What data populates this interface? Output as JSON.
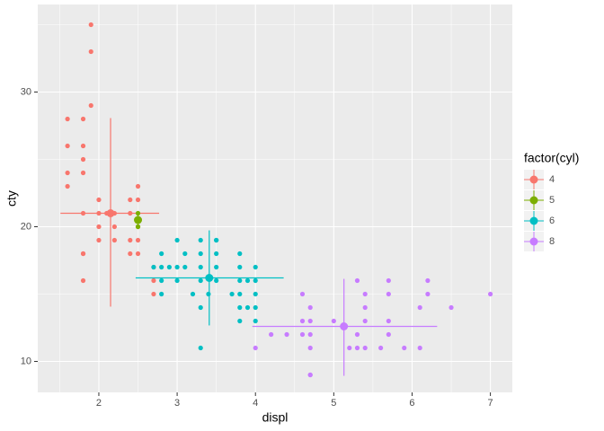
{
  "chart_data": {
    "type": "scatter",
    "xlabel": "displ",
    "ylabel": "cty",
    "legend_title": "factor(cyl)",
    "legend": "right",
    "grid": true,
    "xlim": [
      1.22,
      7.28
    ],
    "xticks": [
      2,
      3,
      4,
      5,
      6,
      7
    ],
    "x_minor_ticks": [
      1.5,
      2.5,
      3.5,
      4.5,
      5.5,
      6.5
    ],
    "ylim": [
      7.7,
      36.5
    ],
    "yticks": [
      10,
      20,
      30
    ],
    "y_minor_ticks": [
      15,
      25,
      35
    ],
    "series": [
      {
        "name": "4",
        "color": "#F8766D",
        "x": [
          1.9,
          1.9,
          1.9,
          1.6,
          1.8,
          1.8,
          1.8,
          1.8,
          1.6,
          1.6,
          1.6,
          1.8,
          1.8,
          1.8,
          2.0,
          2.0,
          2.0,
          2.0,
          2.2,
          2.2,
          2.2,
          2.4,
          2.4,
          2.4,
          2.4,
          2.5,
          2.5,
          2.5,
          2.5,
          2.7,
          2.7,
          2.7,
          1.8,
          2.1
        ],
        "y": [
          35,
          33,
          29,
          28,
          28,
          26,
          25,
          24,
          26,
          24,
          23,
          21,
          18,
          16,
          22,
          21,
          20,
          19,
          21,
          20,
          19,
          22,
          21,
          19,
          18,
          23,
          22,
          19,
          18,
          17,
          16,
          15,
          18,
          21
        ],
        "summary": {
          "x": 2.15,
          "y": 21.0,
          "xmin": 1.51,
          "xmax": 2.77,
          "ymin": 14.07,
          "ymax": 28.07
        }
      },
      {
        "name": "5",
        "color": "#7CAE00",
        "x": [
          2.5,
          2.5,
          2.5
        ],
        "y": [
          21,
          20,
          20
        ],
        "summary": {
          "x": 2.5,
          "y": 20.5,
          "xmin": 2.48,
          "xmax": 2.52,
          "ymin": 19.9,
          "ymax": 21.1
        }
      },
      {
        "name": "6",
        "color": "#00BFC4",
        "x": [
          3.0,
          3.3,
          3.5,
          3.5,
          2.8,
          3.1,
          3.3,
          3.5,
          3.8,
          2.7,
          2.8,
          2.9,
          3.0,
          3.1,
          3.3,
          3.5,
          3.8,
          4.0,
          2.8,
          3.0,
          3.3,
          3.5,
          3.8,
          3.9,
          4.0,
          2.8,
          3.2,
          3.4,
          3.7,
          3.8,
          4.0,
          3.3,
          3.8,
          3.9,
          4.0,
          3.8,
          4.0,
          3.3
        ],
        "y": [
          19,
          19,
          19,
          19,
          18,
          18,
          18,
          18,
          18,
          17,
          17,
          17,
          17,
          17,
          17,
          17,
          17,
          17,
          16,
          16,
          16,
          16,
          16,
          16,
          16,
          15,
          15,
          15,
          15,
          15,
          15,
          14,
          14,
          14,
          14,
          13,
          13,
          11
        ],
        "summary": {
          "x": 3.41,
          "y": 16.2,
          "xmin": 2.47,
          "xmax": 4.36,
          "ymin": 12.67,
          "ymax": 19.73
        }
      },
      {
        "name": "8",
        "color": "#C77CFF",
        "x": [
          5.3,
          5.7,
          6.2,
          4.6,
          5.4,
          5.7,
          6.2,
          7.0,
          4.7,
          5.4,
          6.1,
          6.5,
          4.6,
          4.7,
          5.0,
          5.4,
          5.7,
          4.2,
          4.4,
          4.6,
          4.7,
          5.3,
          5.7,
          4.0,
          4.7,
          5.2,
          5.3,
          5.4,
          5.6,
          5.9,
          6.1,
          4.7,
          4.7
        ],
        "y": [
          16,
          16,
          16,
          15,
          15,
          15,
          15,
          15,
          14,
          14,
          14,
          14,
          13,
          13,
          13,
          13,
          13,
          12,
          12,
          12,
          12,
          12,
          12,
          11,
          11,
          11,
          11,
          11,
          11,
          11,
          11,
          9,
          9
        ],
        "summary": {
          "x": 5.13,
          "y": 12.6,
          "xmin": 3.96,
          "xmax": 6.32,
          "ymin": 8.93,
          "ymax": 16.13
        }
      }
    ]
  }
}
